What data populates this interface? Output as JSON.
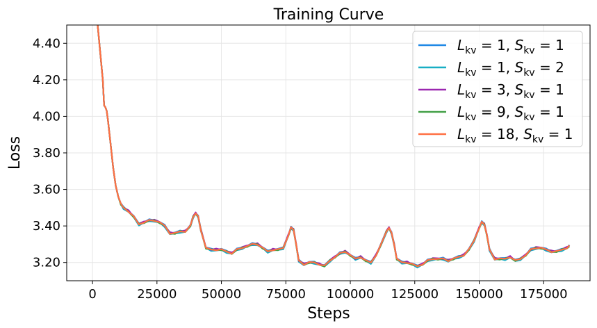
{
  "chart_data": {
    "type": "line",
    "title": "Training Curve",
    "xlabel": "Steps",
    "ylabel": "Loss",
    "xlim": [
      -10000,
      193000
    ],
    "ylim": [
      3.1,
      4.5
    ],
    "xticks": [
      0,
      25000,
      50000,
      75000,
      100000,
      125000,
      150000,
      175000
    ],
    "yticks": [
      3.2,
      3.4,
      3.6,
      3.8,
      4.0,
      4.2,
      4.4
    ],
    "xtick_labels": [
      "0",
      "25000",
      "50000",
      "75000",
      "100000",
      "125000",
      "150000",
      "175000"
    ],
    "ytick_labels": [
      "3.20",
      "3.40",
      "3.60",
      "3.80",
      "4.00",
      "4.20",
      "4.40"
    ],
    "grid": true,
    "legend_position": "top-right",
    "series": [
      {
        "name": "L_kv=1, S_kv=1",
        "L": "1",
        "S": "1",
        "color": "#1f88e5",
        "offset": 0.003
      },
      {
        "name": "L_kv=1, S_kv=2",
        "L": "1",
        "S": "2",
        "color": "#17aec4",
        "offset": -0.004
      },
      {
        "name": "L_kv=3, S_kv=1",
        "L": "3",
        "S": "1",
        "color": "#9b27b0",
        "offset": 0.002
      },
      {
        "name": "L_kv=9, S_kv=1",
        "L": "9",
        "S": "1",
        "color": "#43a047",
        "offset": -0.001
      },
      {
        "name": "L_kv=18, S_kv=1",
        "L": "18",
        "S": "1",
        "color": "#ff7043",
        "offset": 0.0
      }
    ],
    "x": [
      2000,
      3000,
      4000,
      4500,
      5000,
      5500,
      6000,
      7000,
      8000,
      9000,
      10000,
      11000,
      12000,
      14000,
      16000,
      18000,
      20000,
      22000,
      24000,
      26000,
      28000,
      30000,
      32000,
      34000,
      36000,
      38000,
      39000,
      40000,
      41000,
      42000,
      44000,
      46000,
      48000,
      50000,
      52000,
      54000,
      56000,
      58000,
      60000,
      62000,
      64000,
      66000,
      68000,
      70000,
      72000,
      74000,
      76000,
      77000,
      78000,
      79000,
      80000,
      82000,
      84000,
      86000,
      88000,
      90000,
      92000,
      94000,
      96000,
      98000,
      100000,
      102000,
      104000,
      106000,
      108000,
      110000,
      112000,
      114000,
      115000,
      116000,
      117000,
      118000,
      120000,
      122000,
      124000,
      126000,
      128000,
      130000,
      132000,
      134000,
      136000,
      138000,
      140000,
      142000,
      144000,
      146000,
      148000,
      150000,
      151000,
      152000,
      153000,
      154000,
      156000,
      158000,
      160000,
      162000,
      164000,
      166000,
      168000,
      170000,
      172000,
      174000,
      176000,
      178000,
      180000,
      182000,
      184000,
      185000
    ],
    "y": [
      4.5,
      4.35,
      4.2,
      4.06,
      4.05,
      4.03,
      3.98,
      3.85,
      3.72,
      3.62,
      3.56,
      3.52,
      3.5,
      3.48,
      3.45,
      3.41,
      3.42,
      3.43,
      3.43,
      3.42,
      3.4,
      3.36,
      3.36,
      3.37,
      3.37,
      3.4,
      3.45,
      3.47,
      3.45,
      3.38,
      3.28,
      3.27,
      3.27,
      3.27,
      3.26,
      3.25,
      3.27,
      3.28,
      3.29,
      3.3,
      3.3,
      3.28,
      3.26,
      3.27,
      3.27,
      3.28,
      3.35,
      3.39,
      3.38,
      3.3,
      3.21,
      3.19,
      3.2,
      3.2,
      3.19,
      3.18,
      3.21,
      3.23,
      3.25,
      3.26,
      3.24,
      3.22,
      3.23,
      3.21,
      3.2,
      3.24,
      3.3,
      3.37,
      3.39,
      3.36,
      3.3,
      3.22,
      3.2,
      3.2,
      3.19,
      3.18,
      3.19,
      3.21,
      3.22,
      3.22,
      3.22,
      3.21,
      3.22,
      3.23,
      3.24,
      3.27,
      3.32,
      3.39,
      3.42,
      3.41,
      3.35,
      3.27,
      3.22,
      3.22,
      3.22,
      3.23,
      3.21,
      3.22,
      3.24,
      3.27,
      3.28,
      3.28,
      3.27,
      3.26,
      3.26,
      3.27,
      3.28,
      3.29
    ]
  }
}
